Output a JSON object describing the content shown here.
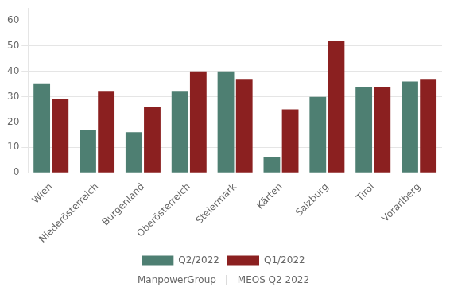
{
  "chart_data": {
    "type": "bar",
    "categories": [
      "Wien",
      "Niederösterreich",
      "Burgenland",
      "Oberösterreich",
      "Steiermark",
      "Kärten",
      "Salzburg",
      "Tirol",
      "Vorarlberg"
    ],
    "series": [
      {
        "name": "Q2/2022",
        "color": "#4e7f72",
        "values": [
          35,
          17,
          16,
          32,
          40,
          6,
          30,
          34,
          36
        ]
      },
      {
        "name": "Q1/2022",
        "color": "#8b2020",
        "values": [
          29,
          32,
          26,
          40,
          37,
          25,
          52,
          34,
          37
        ]
      }
    ],
    "ylim": [
      0,
      65
    ],
    "yticks": [
      0,
      10,
      20,
      30,
      40,
      50,
      60
    ],
    "grid": true,
    "legend": "bottom",
    "annotations": [
      "ManpowerGroup   |   MEOS Q2 2022"
    ]
  }
}
